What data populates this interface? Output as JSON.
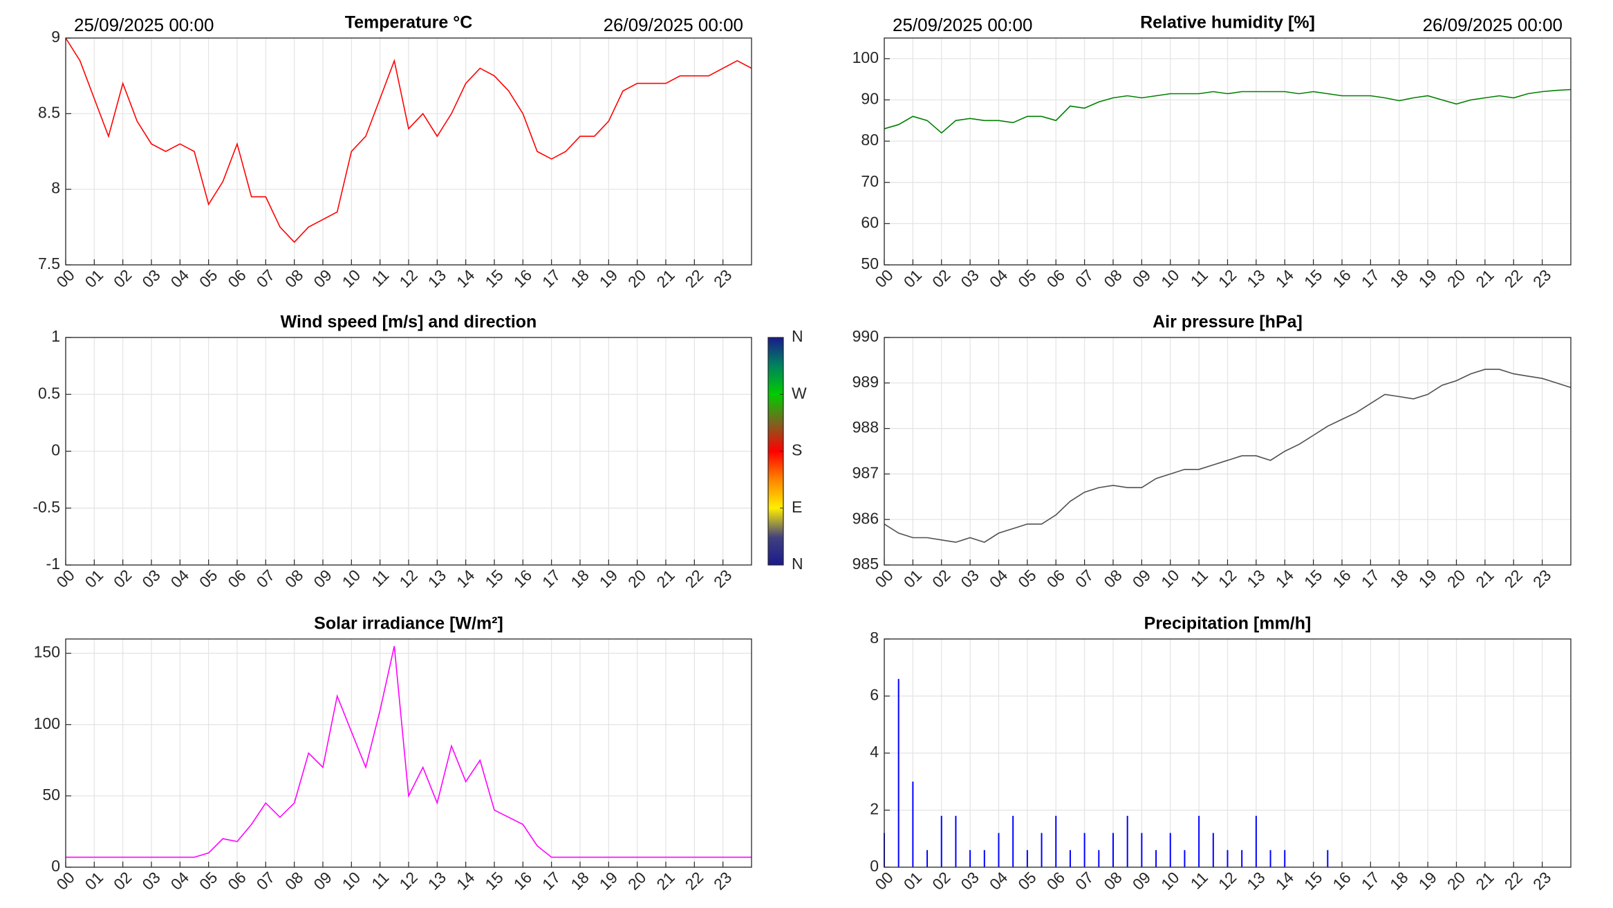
{
  "chart_data": [
    {
      "type": "line",
      "title": "Temperature °C",
      "header_left": "25/09/2025 00:00",
      "header_right": "26/09/2025 00:00",
      "x": [
        0,
        0.5,
        1,
        1.5,
        2,
        2.5,
        3,
        3.5,
        4,
        4.5,
        5,
        5.5,
        6,
        6.5,
        7,
        7.5,
        8,
        8.5,
        9,
        9.5,
        10,
        10.5,
        11,
        11.5,
        12,
        12.5,
        13,
        13.5,
        14,
        14.5,
        15,
        15.5,
        16,
        16.5,
        17,
        17.5,
        18,
        18.5,
        19,
        19.5,
        20,
        20.5,
        21,
        21.5,
        22,
        22.5,
        23,
        23.5,
        24
      ],
      "series": [
        {
          "color": "#ff0000",
          "values": [
            9.0,
            8.85,
            8.6,
            8.35,
            8.7,
            8.45,
            8.3,
            8.25,
            8.3,
            8.25,
            7.9,
            8.05,
            8.3,
            7.95,
            7.95,
            7.75,
            7.65,
            7.75,
            7.8,
            7.85,
            8.25,
            8.35,
            8.6,
            8.85,
            8.4,
            8.5,
            8.35,
            8.5,
            8.7,
            8.8,
            8.75,
            8.65,
            8.5,
            8.25,
            8.2,
            8.25,
            8.35,
            8.35,
            8.45,
            8.65,
            8.7,
            8.7,
            8.7,
            8.75,
            8.75,
            8.75,
            8.8,
            8.85,
            8.8
          ]
        }
      ],
      "xlim": [
        0,
        24
      ],
      "xticks": [
        {
          "value": 0,
          "label": "00"
        },
        {
          "value": 1,
          "label": "01"
        },
        {
          "value": 2,
          "label": "02"
        },
        {
          "value": 3,
          "label": "03"
        },
        {
          "value": 4,
          "label": "04"
        },
        {
          "value": 5,
          "label": "05"
        },
        {
          "value": 6,
          "label": "06"
        },
        {
          "value": 7,
          "label": "07"
        },
        {
          "value": 8,
          "label": "08"
        },
        {
          "value": 9,
          "label": "09"
        },
        10,
        11,
        12,
        13,
        14,
        15,
        16,
        17,
        18,
        19,
        20,
        21,
        22,
        23
      ],
      "ylim": [
        7.5,
        9
      ],
      "yticks": [
        7.5,
        8,
        8.5,
        9
      ],
      "grid": true
    },
    {
      "type": "line",
      "title": "Relative humidity [%]",
      "header_left": "25/09/2025 00:00",
      "header_right": "26/09/2025 00:00",
      "x": [
        0,
        0.5,
        1,
        1.5,
        2,
        2.5,
        3,
        3.5,
        4,
        4.5,
        5,
        5.5,
        6,
        6.5,
        7,
        7.5,
        8,
        8.5,
        9,
        9.5,
        10,
        10.5,
        11,
        11.5,
        12,
        12.5,
        13,
        13.5,
        14,
        14.5,
        15,
        15.5,
        16,
        16.5,
        17,
        17.5,
        18,
        18.5,
        19,
        19.5,
        20,
        20.5,
        21,
        21.5,
        22,
        22.5,
        23,
        23.5,
        24
      ],
      "series": [
        {
          "color": "#008000",
          "values": [
            83,
            84,
            86,
            85,
            82,
            85,
            85.5,
            85,
            85,
            84.5,
            86,
            86,
            85,
            88.5,
            88,
            89.5,
            90.5,
            91,
            90.5,
            91,
            91.5,
            91.5,
            91.5,
            92,
            91.5,
            92,
            92,
            92,
            92,
            91.5,
            92,
            91.5,
            91,
            91,
            91,
            90.5,
            89.8,
            90.5,
            91,
            90,
            89,
            90,
            90.5,
            91,
            90.5,
            91.5,
            92,
            92.3,
            92.5
          ]
        }
      ],
      "xlim": [
        0,
        24
      ],
      "xticks": [
        {
          "value": 0,
          "label": "00"
        },
        {
          "value": 1,
          "label": "01"
        },
        {
          "value": 2,
          "label": "02"
        },
        {
          "value": 3,
          "label": "03"
        },
        {
          "value": 4,
          "label": "04"
        },
        {
          "value": 5,
          "label": "05"
        },
        {
          "value": 6,
          "label": "06"
        },
        {
          "value": 7,
          "label": "07"
        },
        {
          "value": 8,
          "label": "08"
        },
        {
          "value": 9,
          "label": "09"
        },
        10,
        11,
        12,
        13,
        14,
        15,
        16,
        17,
        18,
        19,
        20,
        21,
        22,
        23
      ],
      "ylim": [
        50,
        105
      ],
      "yticks": [
        50,
        60,
        70,
        80,
        90,
        100
      ],
      "grid": true
    },
    {
      "type": "line",
      "title": "Wind speed [m/s] and direction",
      "x": [],
      "series": [],
      "xlim": [
        0,
        24
      ],
      "xticks": [
        {
          "value": 0,
          "label": "00"
        },
        {
          "value": 1,
          "label": "01"
        },
        {
          "value": 2,
          "label": "02"
        },
        {
          "value": 3,
          "label": "03"
        },
        {
          "value": 4,
          "label": "04"
        },
        {
          "value": 5,
          "label": "05"
        },
        {
          "value": 6,
          "label": "06"
        },
        {
          "value": 7,
          "label": "07"
        },
        {
          "value": 8,
          "label": "08"
        },
        {
          "value": 9,
          "label": "09"
        },
        10,
        11,
        12,
        13,
        14,
        15,
        16,
        17,
        18,
        19,
        20,
        21,
        22,
        23
      ],
      "ylim": [
        -1,
        1
      ],
      "yticks": [
        -1,
        -0.5,
        0,
        0.5,
        1
      ],
      "grid": true,
      "colorbar": {
        "lim": [
          0,
          360
        ],
        "ticks": [
          {
            "value": 0,
            "label": "N"
          },
          {
            "value": 90,
            "label": "E"
          },
          {
            "value": 180,
            "label": "S"
          },
          {
            "value": 270,
            "label": "W"
          },
          {
            "value": 360,
            "label": "N"
          }
        ]
      }
    },
    {
      "type": "line",
      "title": "Air pressure [hPa]",
      "x": [
        0,
        0.5,
        1,
        1.5,
        2,
        2.5,
        3,
        3.5,
        4,
        4.5,
        5,
        5.5,
        6,
        6.5,
        7,
        7.5,
        8,
        8.5,
        9,
        9.5,
        10,
        10.5,
        11,
        11.5,
        12,
        12.5,
        13,
        13.5,
        14,
        14.5,
        15,
        15.5,
        16,
        16.5,
        17,
        17.5,
        18,
        18.5,
        19,
        19.5,
        20,
        20.5,
        21,
        21.5,
        22,
        22.5,
        23,
        23.5,
        24
      ],
      "series": [
        {
          "color": "#505050",
          "values": [
            985.9,
            985.7,
            985.6,
            985.6,
            985.55,
            985.5,
            985.6,
            985.5,
            985.7,
            985.8,
            985.9,
            985.9,
            986.1,
            986.4,
            986.6,
            986.7,
            986.75,
            986.7,
            986.7,
            986.9,
            987.0,
            987.1,
            987.1,
            987.2,
            987.3,
            987.4,
            987.4,
            987.3,
            987.5,
            987.65,
            987.85,
            988.05,
            988.2,
            988.35,
            988.55,
            988.75,
            988.7,
            988.65,
            988.75,
            988.95,
            989.05,
            989.2,
            989.3,
            989.3,
            989.2,
            989.15,
            989.1,
            989.0,
            988.9
          ]
        }
      ],
      "xlim": [
        0,
        24
      ],
      "xticks": [
        {
          "value": 0,
          "label": "00"
        },
        {
          "value": 1,
          "label": "01"
        },
        {
          "value": 2,
          "label": "02"
        },
        {
          "value": 3,
          "label": "03"
        },
        {
          "value": 4,
          "label": "04"
        },
        {
          "value": 5,
          "label": "05"
        },
        {
          "value": 6,
          "label": "06"
        },
        {
          "value": 7,
          "label": "07"
        },
        {
          "value": 8,
          "label": "08"
        },
        {
          "value": 9,
          "label": "09"
        },
        10,
        11,
        12,
        13,
        14,
        15,
        16,
        17,
        18,
        19,
        20,
        21,
        22,
        23
      ],
      "ylim": [
        985,
        990
      ],
      "yticks": [
        985,
        986,
        987,
        988,
        989,
        990
      ],
      "grid": true
    },
    {
      "type": "line",
      "title": "Solar irradiance [W/m²]",
      "x": [
        0,
        0.5,
        1,
        1.5,
        2,
        2.5,
        3,
        3.5,
        4,
        4.5,
        5,
        5.5,
        6,
        6.5,
        7,
        7.5,
        8,
        8.5,
        9,
        9.5,
        10,
        10.5,
        11,
        11.5,
        12,
        12.5,
        13,
        13.5,
        14,
        14.5,
        15,
        15.5,
        16,
        16.5,
        17,
        17.5,
        18,
        18.5,
        19,
        19.5,
        20,
        20.5,
        21,
        21.5,
        22,
        22.5,
        23,
        23.5,
        24
      ],
      "series": [
        {
          "color": "#ff00ff",
          "values": [
            7,
            7,
            7,
            7,
            7,
            7,
            7,
            7,
            7,
            7,
            10,
            20,
            18,
            30,
            45,
            35,
            45,
            80,
            70,
            120,
            95,
            70,
            110,
            155,
            50,
            70,
            45,
            85,
            60,
            75,
            40,
            35,
            30,
            15,
            7,
            7,
            7,
            7,
            7,
            7,
            7,
            7,
            7,
            7,
            7,
            7,
            7,
            7,
            7
          ]
        }
      ],
      "xlim": [
        0,
        24
      ],
      "xticks": [
        {
          "value": 0,
          "label": "00"
        },
        {
          "value": 1,
          "label": "01"
        },
        {
          "value": 2,
          "label": "02"
        },
        {
          "value": 3,
          "label": "03"
        },
        {
          "value": 4,
          "label": "04"
        },
        {
          "value": 5,
          "label": "05"
        },
        {
          "value": 6,
          "label": "06"
        },
        {
          "value": 7,
          "label": "07"
        },
        {
          "value": 8,
          "label": "08"
        },
        {
          "value": 9,
          "label": "09"
        },
        10,
        11,
        12,
        13,
        14,
        15,
        16,
        17,
        18,
        19,
        20,
        21,
        22,
        23
      ],
      "ylim": [
        0,
        160
      ],
      "yticks": [
        0,
        50,
        100,
        150
      ],
      "grid": true
    },
    {
      "type": "bar",
      "title": "Precipitation [mm/h]",
      "x": [
        0,
        0.5,
        1,
        1.5,
        2,
        2.5,
        3,
        3.5,
        4,
        4.5,
        5,
        5.5,
        6,
        6.5,
        7,
        7.5,
        8,
        8.5,
        9,
        9.5,
        10,
        10.5,
        11,
        11.5,
        12,
        12.5,
        13,
        13.5,
        14,
        14.5,
        15,
        15.5,
        16,
        16.5,
        17,
        17.5,
        18,
        18.5,
        19,
        19.5,
        20,
        20.5,
        21,
        21.5,
        22,
        22.5,
        23,
        23.5,
        24
      ],
      "series": [
        {
          "color": "#0000ff",
          "values": [
            1.2,
            6.6,
            3,
            0.6,
            1.8,
            1.8,
            0.6,
            0.6,
            1.2,
            1.8,
            0.6,
            1.2,
            1.8,
            0.6,
            1.2,
            0.6,
            1.2,
            1.8,
            1.2,
            0.6,
            1.2,
            0.6,
            1.8,
            1.2,
            0.6,
            0.6,
            1.8,
            0.6,
            0.6,
            0,
            0,
            0.6,
            0,
            0,
            0,
            0,
            0,
            0,
            0,
            0,
            0,
            0,
            0,
            0,
            0,
            0,
            0,
            0,
            0
          ]
        }
      ],
      "xlim": [
        0,
        24
      ],
      "xticks": [
        {
          "value": 0,
          "label": "00"
        },
        {
          "value": 1,
          "label": "01"
        },
        {
          "value": 2,
          "label": "02"
        },
        {
          "value": 3,
          "label": "03"
        },
        {
          "value": 4,
          "label": "04"
        },
        {
          "value": 5,
          "label": "05"
        },
        {
          "value": 6,
          "label": "06"
        },
        {
          "value": 7,
          "label": "07"
        },
        {
          "value": 8,
          "label": "08"
        },
        {
          "value": 9,
          "label": "09"
        },
        10,
        11,
        12,
        13,
        14,
        15,
        16,
        17,
        18,
        19,
        20,
        21,
        22,
        23
      ],
      "ylim": [
        0,
        8
      ],
      "yticks": [
        0,
        2,
        4,
        6,
        8
      ],
      "grid": true
    }
  ]
}
